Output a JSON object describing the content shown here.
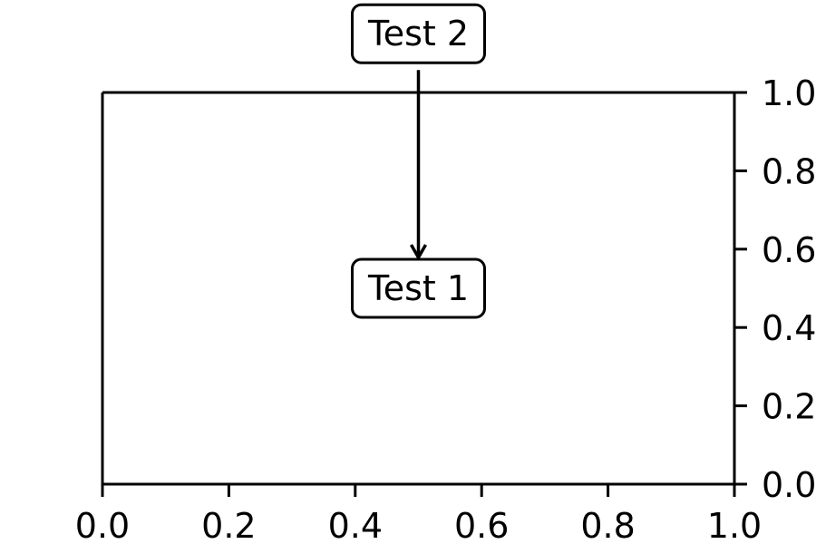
{
  "chart_data": {
    "type": "scatter",
    "title": "",
    "xlabel": "",
    "ylabel": "",
    "xlim": [
      0.0,
      1.0
    ],
    "ylim": [
      0.0,
      1.0
    ],
    "grid": false,
    "y_axis_side": "right",
    "series": [],
    "x_ticks": [
      {
        "value": 0.0,
        "label": "0.0"
      },
      {
        "value": 0.2,
        "label": "0.2"
      },
      {
        "value": 0.4,
        "label": "0.4"
      },
      {
        "value": 0.6,
        "label": "0.6"
      },
      {
        "value": 0.8,
        "label": "0.8"
      },
      {
        "value": 1.0,
        "label": "1.0"
      }
    ],
    "y_ticks": [
      {
        "value": 0.0,
        "label": "0.0"
      },
      {
        "value": 0.2,
        "label": "0.2"
      },
      {
        "value": 0.4,
        "label": "0.4"
      },
      {
        "value": 0.6,
        "label": "0.6"
      },
      {
        "value": 0.8,
        "label": "0.8"
      },
      {
        "value": 1.0,
        "label": "1.0"
      }
    ],
    "annotations": [
      {
        "text": "Test 1",
        "x": 0.5,
        "y": 0.5,
        "box": "round"
      },
      {
        "text": "Test 2",
        "x": 0.5,
        "y": 1.15,
        "box": "round",
        "arrow_to": "Test 1"
      }
    ]
  }
}
